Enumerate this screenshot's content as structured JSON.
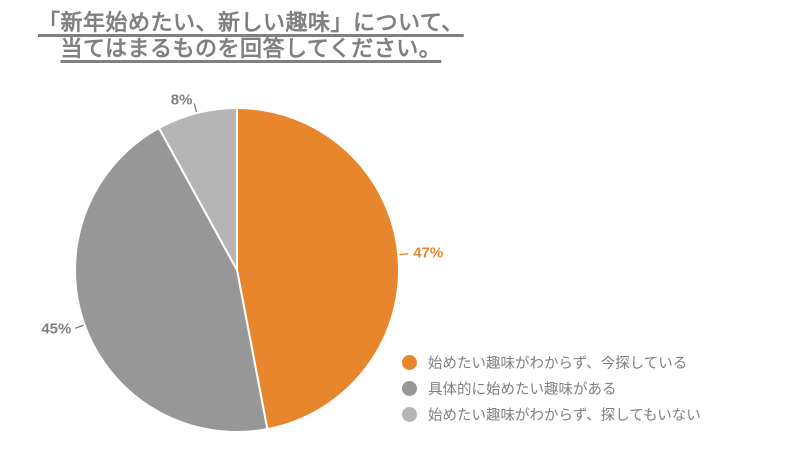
{
  "title": {
    "line1": "「新年始めたい、新しい趣味」について、",
    "line2": "当てはまるものを回答してください。"
  },
  "colors": {
    "title_text": "#808080",
    "legend_text": "#7F7F7F",
    "background": "#ffffff"
  },
  "chart_data": {
    "type": "pie",
    "title": "「新年始めたい、新しい趣味」について、当てはまるものを回答してください。",
    "unit": "%",
    "start_angle_deg": 0,
    "direction": "clockwise",
    "legend_position": "bottom-right",
    "slices": [
      {
        "label": "始めたい趣味がわからず、今探している",
        "value": 47,
        "display_value": "47%",
        "color": "#E8862D",
        "label_color": "#E8862D"
      },
      {
        "label": "具体的に始めたい趣味がある",
        "value": 45,
        "display_value": "45%",
        "color": "#979797",
        "label_color": "#7F7F7F"
      },
      {
        "label": "始めたい趣味がわからず、探してもいない",
        "value": 8,
        "display_value": "8%",
        "color": "#B5B5B5",
        "label_color": "#7F7F7F"
      }
    ]
  }
}
